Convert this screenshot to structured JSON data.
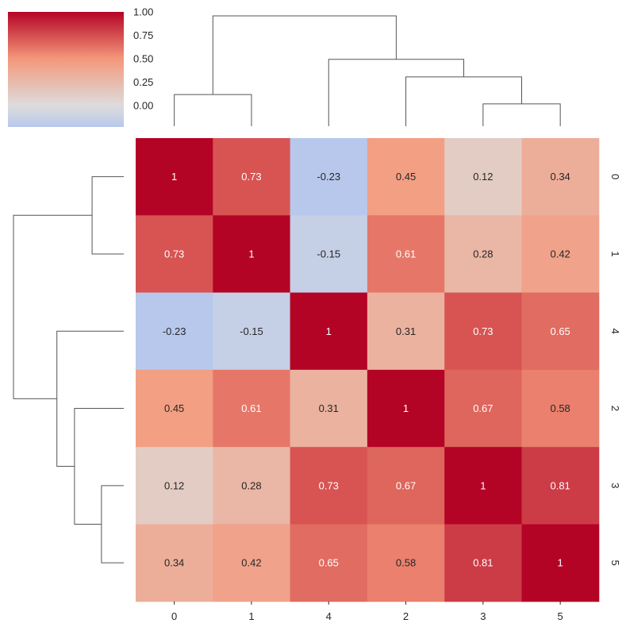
{
  "chart_data": {
    "type": "heatmap",
    "variant": "clustermap",
    "title": "",
    "xlabel": "",
    "ylabel": "",
    "column_order": [
      "0",
      "1",
      "4",
      "2",
      "3",
      "5"
    ],
    "row_order": [
      "0",
      "1",
      "4",
      "2",
      "3",
      "5"
    ],
    "matrix": [
      [
        1,
        0.73,
        -0.23,
        0.45,
        0.12,
        0.34
      ],
      [
        0.73,
        1,
        -0.15,
        0.61,
        0.28,
        0.42
      ],
      [
        -0.23,
        -0.15,
        1,
        0.31,
        0.73,
        0.65
      ],
      [
        0.45,
        0.61,
        0.31,
        1,
        0.67,
        0.58
      ],
      [
        0.12,
        0.28,
        0.73,
        0.67,
        1,
        0.81
      ],
      [
        0.34,
        0.42,
        0.65,
        0.58,
        0.81,
        1
      ]
    ],
    "cell_labels": [
      [
        "1",
        "0.73",
        "-0.23",
        "0.45",
        "0.12",
        "0.34"
      ],
      [
        "0.73",
        "1",
        "-0.15",
        "0.61",
        "0.28",
        "0.42"
      ],
      [
        "-0.23",
        "-0.15",
        "1",
        "0.31",
        "0.73",
        "0.65"
      ],
      [
        "0.45",
        "0.61",
        "0.31",
        "1",
        "0.67",
        "0.58"
      ],
      [
        "0.12",
        "0.28",
        "0.73",
        "0.67",
        "1",
        "0.81"
      ],
      [
        "0.34",
        "0.42",
        "0.65",
        "0.58",
        "0.81",
        "1"
      ]
    ],
    "colormap": "coolwarm",
    "color_range": [
      -0.23,
      1
    ],
    "colorbar": {
      "ticks": [
        1.0,
        0.75,
        0.5,
        0.25,
        0.0
      ],
      "tick_labels": [
        "1.00",
        "0.75",
        "0.50",
        "0.25",
        "0.00"
      ],
      "placement": "top-left"
    },
    "dendrogram_linkage": [
      {
        "left": 3,
        "right": 5,
        "height": 0.19
      },
      {
        "left": 2,
        "right": "3+5",
        "height": 0.42
      },
      {
        "left": 4,
        "right": "2+3+5",
        "height": 0.57
      },
      {
        "left": 0,
        "right": 1,
        "height": 0.27
      },
      {
        "left": "0+1",
        "right": "4+2+3+5",
        "height": 0.94
      }
    ],
    "grid": false,
    "legend": "colorbar top-left"
  }
}
